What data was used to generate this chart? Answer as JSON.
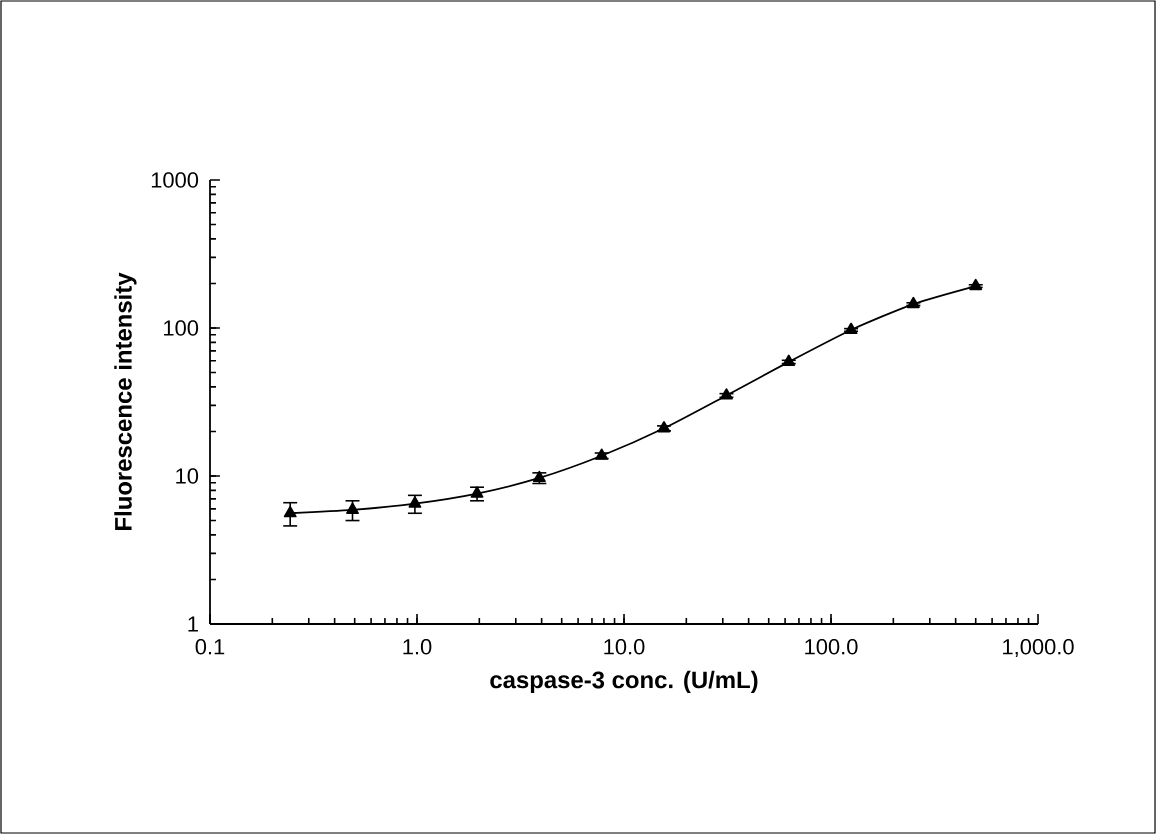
{
  "chart_data": {
    "type": "line",
    "xlabel": "caspase-3 conc. (U/mL)",
    "ylabel": "Fluorescence intensity",
    "log": "xy",
    "marker": "triangle",
    "line_style": "solid",
    "grid": false,
    "x": [
      0.244,
      0.488,
      0.977,
      1.95,
      3.9,
      7.8,
      15.6,
      31.25,
      62.5,
      125,
      250,
      500
    ],
    "series": [
      {
        "color": "#000000",
        "values": [
          5.6,
          5.9,
          6.5,
          7.6,
          9.7,
          13.7,
          21,
          35,
          59,
          97,
          145,
          192
        ],
        "errors": [
          1.0,
          0.9,
          0.9,
          0.8,
          0.8,
          0.6,
          0.8,
          1.0,
          1.5,
          2,
          3,
          4
        ]
      }
    ],
    "xlim": [
      0.1,
      1000
    ],
    "ylim": [
      1,
      1000
    ],
    "xticks": [
      0.1,
      {
        "value": 1,
        "label": "1.0"
      },
      {
        "value": 10,
        "label": "10.0"
      },
      {
        "value": 100,
        "label": "100.0"
      },
      {
        "value": 1000,
        "label": "1,000.0"
      }
    ],
    "yticks": [
      1,
      10,
      100,
      1000
    ]
  }
}
